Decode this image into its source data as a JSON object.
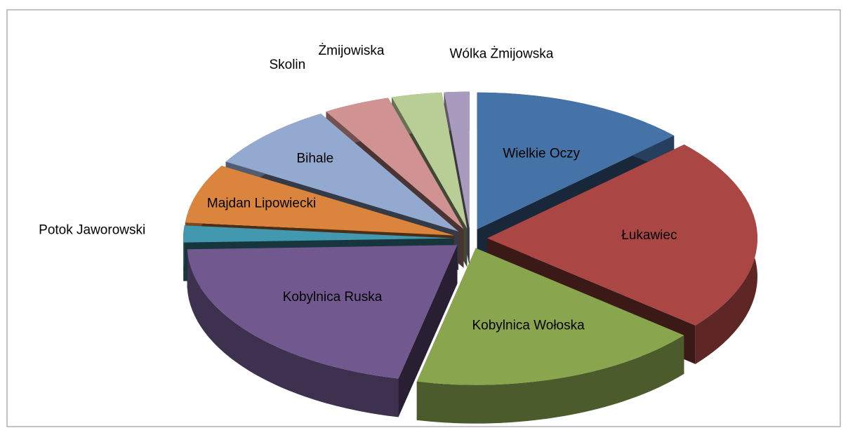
{
  "chart_data": {
    "type": "pie",
    "categories": [
      "Wielkie Oczy",
      "Łukawiec",
      "Kobylnica Wołoska",
      "Kobylnica Ruska",
      "Potok Jaworowski",
      "Majdan Lipowiecki",
      "Bihale",
      "Skolin",
      "Żmijowiska",
      "Wólka Żmijowska"
    ],
    "values": [
      13,
      23,
      17.5,
      21,
      2,
      7,
      8,
      4,
      3,
      1.5
    ],
    "colors": [
      "#4572a7",
      "#aa4643",
      "#89a54e",
      "#71588f",
      "#4198af",
      "#db843d",
      "#93a9cf",
      "#d19392",
      "#b9cd96",
      "#a99bbd"
    ]
  }
}
